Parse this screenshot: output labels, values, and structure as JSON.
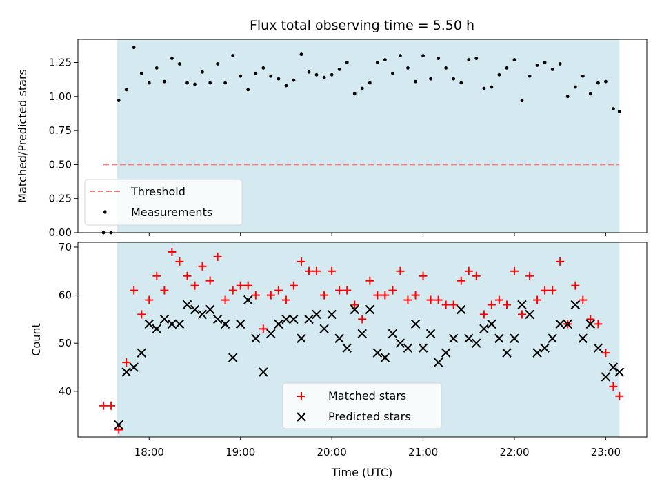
{
  "chart_data": [
    {
      "type": "scatter",
      "title": "Flux total observing time = 5.50 h",
      "xlabel": "",
      "ylabel": "Matched/Predicted stars",
      "ylim": [
        0,
        1.42
      ],
      "xlim_hours": [
        17.22,
        23.45
      ],
      "yticks": [
        0,
        0.25,
        0.5,
        0.75,
        1.0,
        1.25
      ],
      "ytick_labels": [
        "0.00",
        "0.25",
        "0.50",
        "0.75",
        "1.00",
        "1.25"
      ],
      "observing_window_hours": [
        17.65,
        23.15
      ],
      "threshold": {
        "label": "Threshold",
        "value": 0.5,
        "x_start": 17.5,
        "x_end": 23.15,
        "color": "#f08080"
      },
      "legend": [
        "Threshold",
        "Measurements"
      ],
      "legend_position": "lower-left",
      "series": [
        {
          "name": "Measurements",
          "color": "#000000",
          "x": [
            17.5,
            17.583,
            17.667,
            17.75,
            17.833,
            17.917,
            18.0,
            18.083,
            18.167,
            18.25,
            18.333,
            18.417,
            18.5,
            18.583,
            18.667,
            18.75,
            18.833,
            18.917,
            19.0,
            19.083,
            19.167,
            19.25,
            19.333,
            19.417,
            19.5,
            19.583,
            19.667,
            19.75,
            19.833,
            19.917,
            20.0,
            20.083,
            20.167,
            20.25,
            20.333,
            20.417,
            20.5,
            20.583,
            20.667,
            20.75,
            20.833,
            20.917,
            21.0,
            21.083,
            21.167,
            21.25,
            21.333,
            21.417,
            21.5,
            21.583,
            21.667,
            21.75,
            21.833,
            21.917,
            22.0,
            22.083,
            22.167,
            22.25,
            22.333,
            22.417,
            22.5,
            22.583,
            22.667,
            22.75,
            22.833,
            22.917,
            23.0,
            23.083,
            23.15
          ],
          "y": [
            0.0,
            0.0,
            0.97,
            1.05,
            1.36,
            1.17,
            1.1,
            1.21,
            1.11,
            1.28,
            1.24,
            1.1,
            1.09,
            1.18,
            1.1,
            1.24,
            1.1,
            1.3,
            1.15,
            1.05,
            1.17,
            1.21,
            1.15,
            1.13,
            1.08,
            1.12,
            1.31,
            1.18,
            1.16,
            1.14,
            1.16,
            1.2,
            1.25,
            1.02,
            1.06,
            1.1,
            1.25,
            1.27,
            1.17,
            1.3,
            1.21,
            1.11,
            1.3,
            1.13,
            1.28,
            1.21,
            1.13,
            1.1,
            1.27,
            1.28,
            1.06,
            1.07,
            1.16,
            1.21,
            1.27,
            0.97,
            1.15,
            1.23,
            1.25,
            1.2,
            1.24,
            1.0,
            1.07,
            1.15,
            1.02,
            1.1,
            1.11,
            0.91,
            0.89
          ]
        }
      ]
    },
    {
      "type": "scatter",
      "title": "",
      "xlabel": "Time (UTC)",
      "ylabel": "Count",
      "ylim": [
        30.5,
        71
      ],
      "xlim_hours": [
        17.22,
        23.45
      ],
      "yticks": [
        40,
        50,
        60,
        70
      ],
      "ytick_labels": [
        "40",
        "50",
        "60",
        "70"
      ],
      "xticks_hours": [
        18,
        19,
        20,
        21,
        22,
        23
      ],
      "xtick_labels": [
        "18:00",
        "19:00",
        "20:00",
        "21:00",
        "22:00",
        "23:00"
      ],
      "observing_window_hours": [
        17.65,
        23.15
      ],
      "legend": [
        "Matched stars",
        "Predicted stars"
      ],
      "legend_position": "lower-center",
      "series": [
        {
          "name": "Matched stars",
          "marker": "plus",
          "color": "#ff0000",
          "x": [
            17.5,
            17.583,
            17.667,
            17.75,
            17.833,
            17.917,
            18.0,
            18.083,
            18.167,
            18.25,
            18.333,
            18.417,
            18.5,
            18.583,
            18.667,
            18.75,
            18.833,
            18.917,
            19.0,
            19.083,
            19.167,
            19.25,
            19.333,
            19.417,
            19.5,
            19.583,
            19.667,
            19.75,
            19.833,
            19.917,
            20.0,
            20.083,
            20.167,
            20.25,
            20.333,
            20.417,
            20.5,
            20.583,
            20.667,
            20.75,
            20.833,
            20.917,
            21.0,
            21.083,
            21.167,
            21.25,
            21.333,
            21.417,
            21.5,
            21.583,
            21.667,
            21.75,
            21.833,
            21.917,
            22.0,
            22.083,
            22.167,
            22.25,
            22.333,
            22.417,
            22.5,
            22.583,
            22.667,
            22.75,
            22.833,
            22.917,
            23.0,
            23.083,
            23.15
          ],
          "y": [
            37,
            37,
            32,
            46,
            61,
            56,
            59,
            64,
            61,
            69,
            67,
            64,
            62,
            66,
            63,
            68,
            59,
            61,
            62,
            62,
            60,
            53,
            60,
            61,
            59,
            62,
            67,
            65,
            65,
            60,
            65,
            61,
            61,
            58,
            55,
            63,
            60,
            60,
            61,
            65,
            59,
            60,
            64,
            59,
            59,
            58,
            58,
            63,
            65,
            64,
            56,
            58,
            59,
            58,
            65,
            56,
            64,
            59,
            61,
            61,
            67,
            54,
            62,
            59,
            55,
            54,
            48,
            41,
            39
          ]
        },
        {
          "name": "Predicted stars",
          "marker": "x",
          "color": "#000000",
          "x": [
            17.667,
            17.75,
            17.833,
            17.917,
            18.0,
            18.083,
            18.167,
            18.25,
            18.333,
            18.417,
            18.5,
            18.583,
            18.667,
            18.75,
            18.833,
            18.917,
            19.0,
            19.083,
            19.167,
            19.25,
            19.333,
            19.417,
            19.5,
            19.583,
            19.667,
            19.75,
            19.833,
            19.917,
            20.0,
            20.083,
            20.167,
            20.25,
            20.333,
            20.417,
            20.5,
            20.583,
            20.667,
            20.75,
            20.833,
            20.917,
            21.0,
            21.083,
            21.167,
            21.25,
            21.333,
            21.417,
            21.5,
            21.583,
            21.667,
            21.75,
            21.833,
            21.917,
            22.0,
            22.083,
            22.167,
            22.25,
            22.333,
            22.417,
            22.5,
            22.583,
            22.667,
            22.75,
            22.833,
            22.917,
            23.0,
            23.083,
            23.15
          ],
          "y": [
            33,
            44,
            45,
            48,
            54,
            53,
            55,
            54,
            54,
            58,
            57,
            56,
            57,
            55,
            54,
            47,
            54,
            59,
            51,
            44,
            52,
            54,
            55,
            55,
            51,
            55,
            56,
            53,
            56,
            51,
            49,
            57,
            52,
            57,
            48,
            47,
            52,
            50,
            49,
            54,
            49,
            52,
            46,
            48,
            51,
            57,
            51,
            50,
            53,
            54,
            51,
            48,
            51,
            58,
            56,
            48,
            49,
            51,
            54,
            54,
            58,
            51,
            54,
            49,
            43,
            45,
            44
          ]
        }
      ]
    }
  ]
}
